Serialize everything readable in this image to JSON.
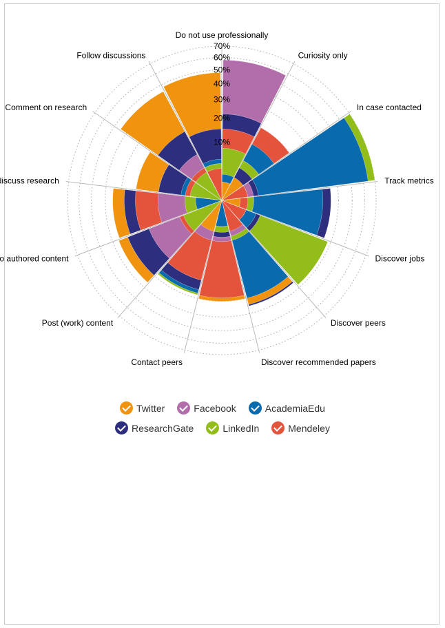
{
  "chart_data": {
    "type": "polar-area",
    "title": "",
    "radial_axis": {
      "min": 0,
      "max": 70,
      "ticks": [
        "10%",
        "20%",
        "30%",
        "40%",
        "50%",
        "60%",
        "70%"
      ],
      "tick_values": [
        10,
        20,
        30,
        40,
        50,
        60,
        70
      ],
      "grid": "dotted"
    },
    "categories": [
      "Do not use professionally",
      "Curiosity only",
      "In case contacted",
      "Track metrics",
      "Discover jobs",
      "Discover peers",
      "Discover recommended papers",
      "Contact peers",
      "Post (work) content",
      "Share links to authored content",
      "Actively discuss research",
      "Comment on research",
      "Follow discussions"
    ],
    "series": [
      {
        "name": "Twitter",
        "color": "#f0930f",
        "values": [
          1,
          2,
          2,
          1,
          2,
          34,
          30,
          3,
          36,
          35,
          22,
          45,
          48
        ]
      },
      {
        "name": "Facebook",
        "color": "#b26eab",
        "values": [
          58,
          6,
          3,
          3,
          2,
          4,
          5,
          5,
          18,
          12,
          12,
          8,
          4
        ]
      },
      {
        "name": "AcademiaEdu",
        "color": "#0a6aae",
        "values": [
          2,
          12,
          64,
          30,
          4,
          30,
          2,
          27,
          30,
          2,
          5,
          4,
          5
        ]
      },
      {
        "name": "ResearchGate",
        "color": "#2d2f7e",
        "values": [
          22,
          4,
          4,
          35,
          5,
          35,
          4,
          25,
          30,
          28,
          12,
          18,
          15
        ]
      },
      {
        "name": "LinkedIn",
        "color": "#92bd1b",
        "values": [
          8,
          6,
          70,
          3,
          38,
          5,
          3,
          28,
          5,
          4,
          3,
          3,
          4
        ]
      },
      {
        "name": "Mendeley",
        "color": "#e4543d",
        "values": [
          15,
          20,
          2,
          2,
          2,
          3,
          28,
          20,
          6,
          22,
          4,
          4,
          3
        ]
      }
    ],
    "legend": "bottom-center"
  }
}
